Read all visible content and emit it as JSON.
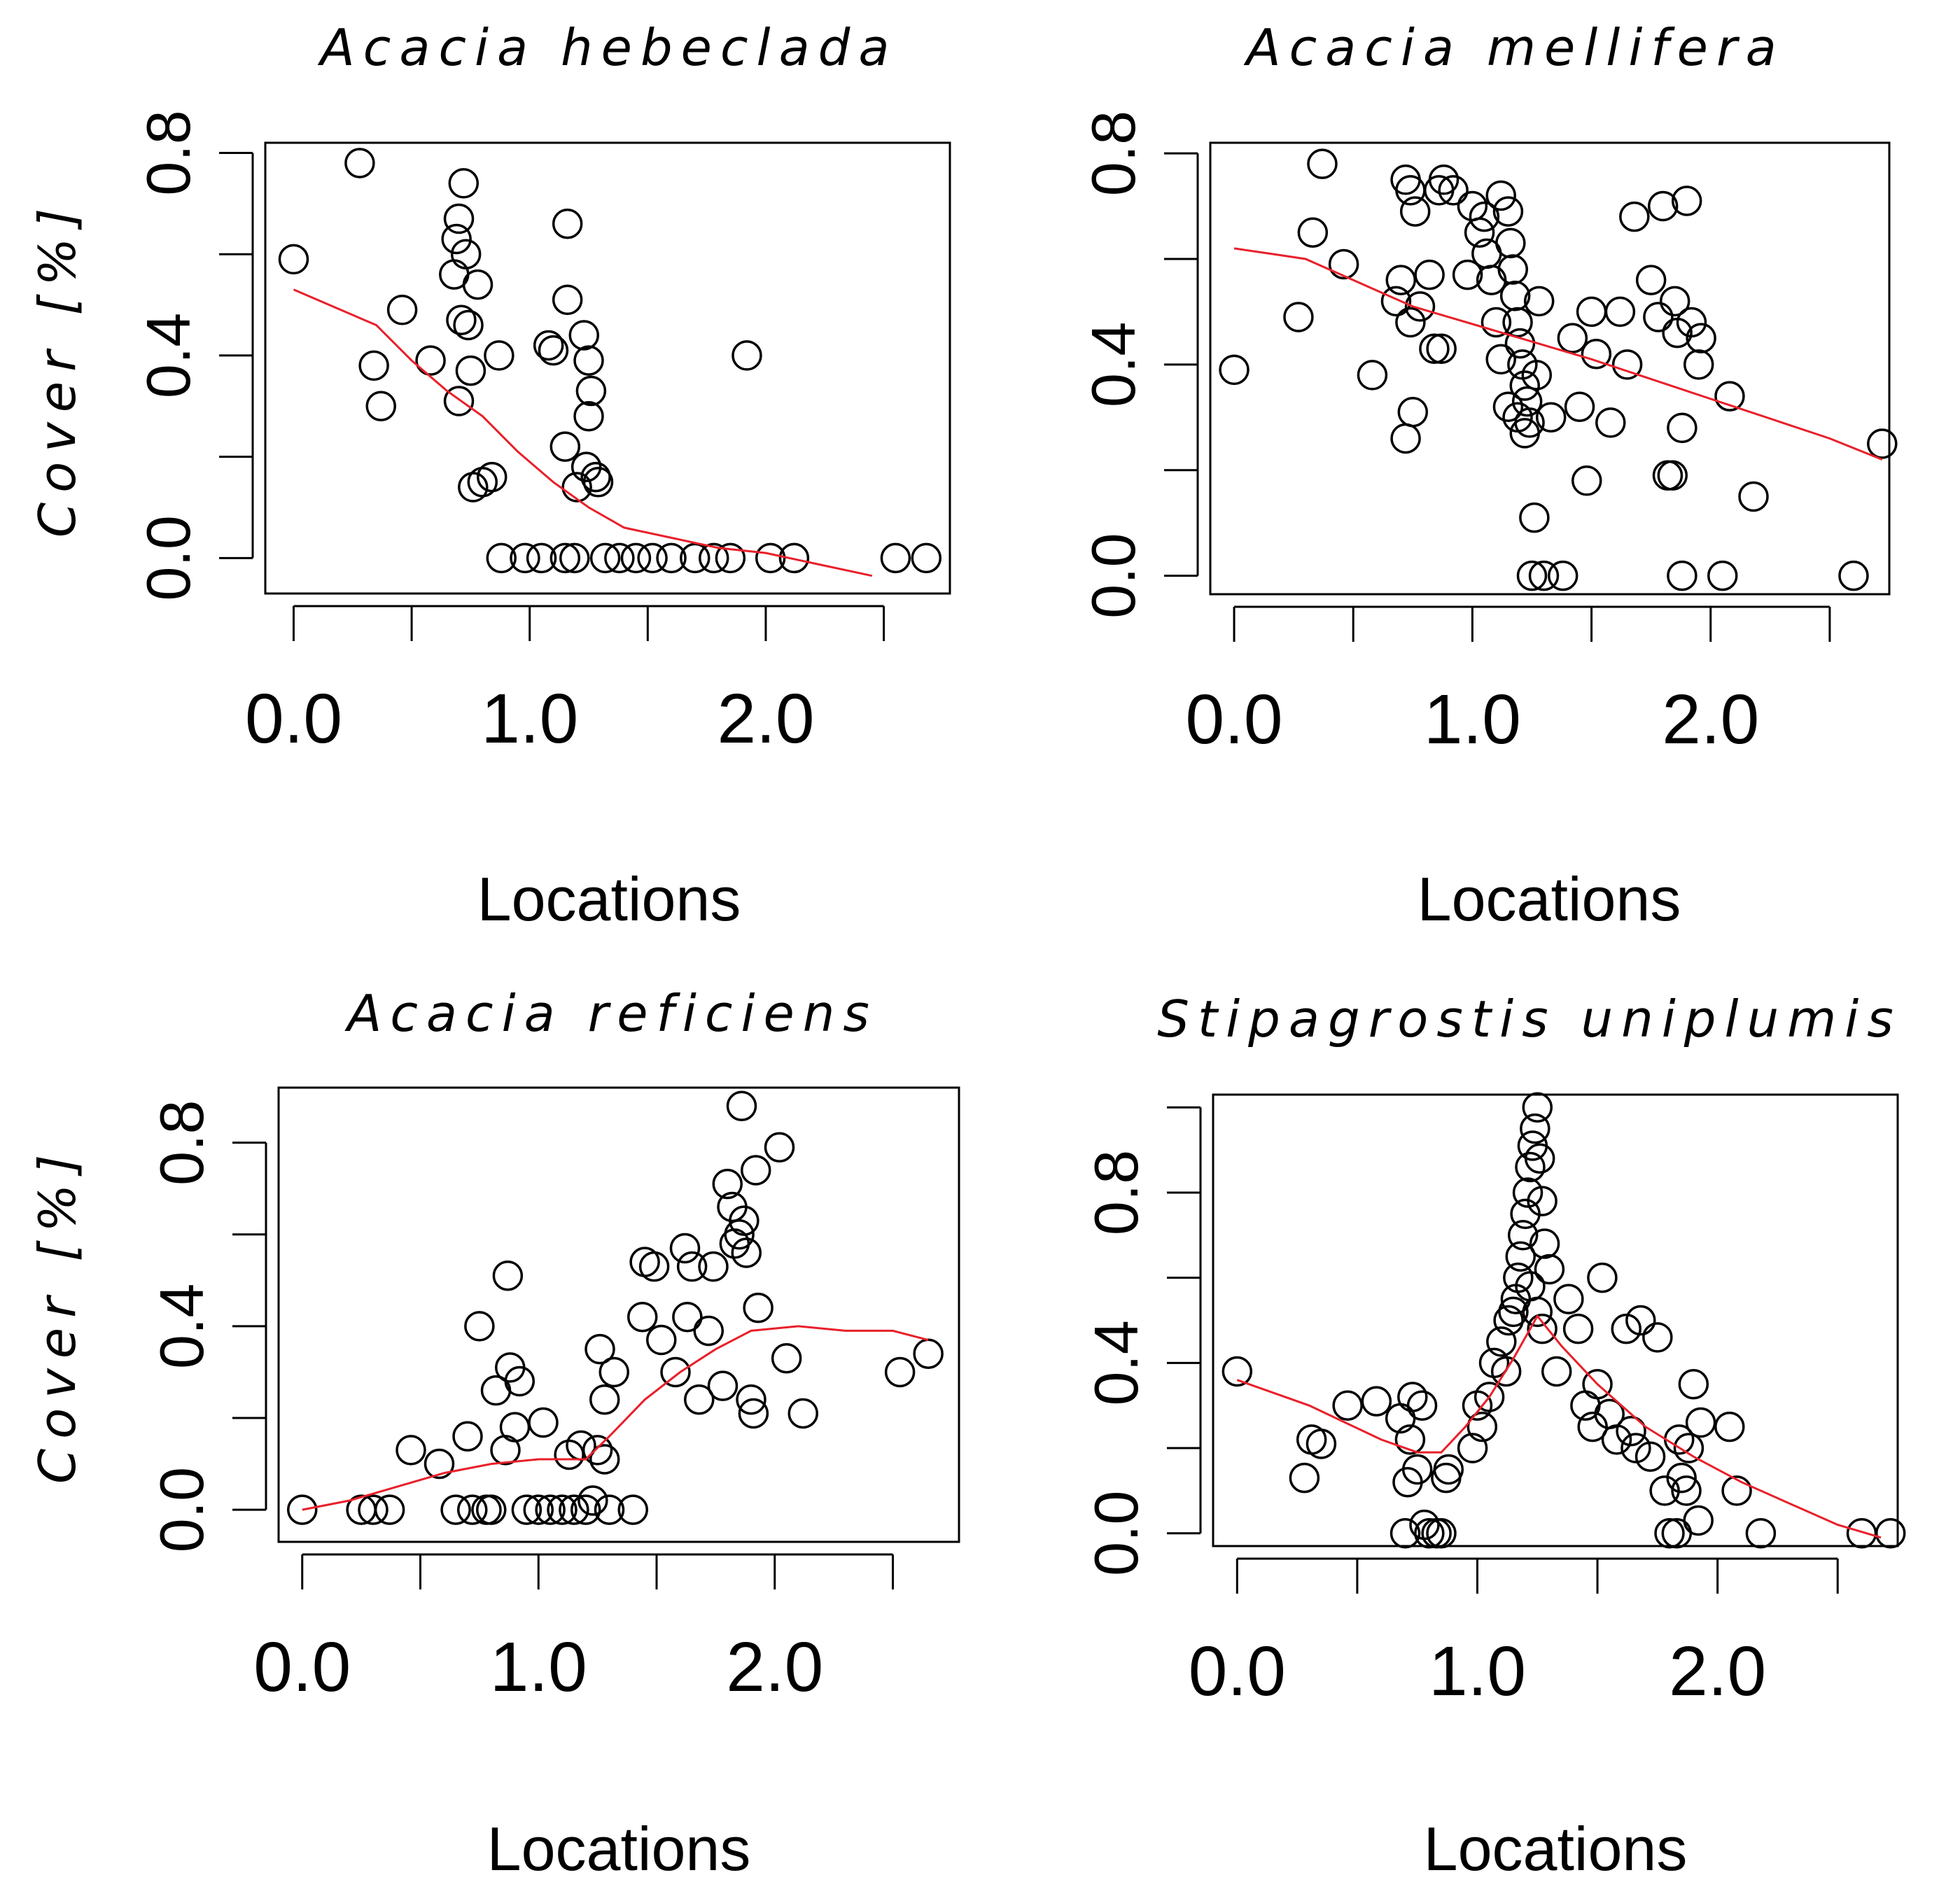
{
  "chart_data": [
    {
      "type": "scatter",
      "title": "Acacia hebeclada",
      "xlabel": "Locations",
      "ylabel": "Cover [%]",
      "xlim": [
        -0.12,
        2.78
      ],
      "ylim": [
        -0.07,
        0.82
      ],
      "xticks": [
        0,
        0.5,
        1,
        1.5,
        2,
        2.5
      ],
      "xtick_labels": [
        "0.0",
        "",
        "1.0",
        "",
        "2.0",
        ""
      ],
      "yticks": [
        0,
        0.2,
        0.4,
        0.6,
        0.8
      ],
      "ytick_labels": [
        "0.0",
        "",
        "0.4",
        "",
        "0.8"
      ],
      "points": [
        [
          0.0,
          0.59
        ],
        [
          0.28,
          0.78
        ],
        [
          0.34,
          0.38
        ],
        [
          0.37,
          0.3
        ],
        [
          0.46,
          0.49
        ],
        [
          0.58,
          0.39
        ],
        [
          0.68,
          0.56
        ],
        [
          0.69,
          0.63
        ],
        [
          0.7,
          0.67
        ],
        [
          0.72,
          0.74
        ],
        [
          0.73,
          0.6
        ],
        [
          0.71,
          0.47
        ],
        [
          0.74,
          0.46
        ],
        [
          0.75,
          0.37
        ],
        [
          0.7,
          0.31
        ],
        [
          0.78,
          0.54
        ],
        [
          0.76,
          0.14
        ],
        [
          0.8,
          0.15
        ],
        [
          0.84,
          0.16
        ],
        [
          0.87,
          0.4
        ],
        [
          0.88,
          0.0
        ],
        [
          0.98,
          0.0
        ],
        [
          1.05,
          0.0
        ],
        [
          1.08,
          0.42
        ],
        [
          1.1,
          0.41
        ],
        [
          1.15,
          0.0
        ],
        [
          1.16,
          0.66
        ],
        [
          1.16,
          0.51
        ],
        [
          1.15,
          0.22
        ],
        [
          1.19,
          0.0
        ],
        [
          1.23,
          0.44
        ],
        [
          1.25,
          0.39
        ],
        [
          1.26,
          0.33
        ],
        [
          1.25,
          0.28
        ],
        [
          1.24,
          0.18
        ],
        [
          1.28,
          0.16
        ],
        [
          1.2,
          0.14
        ],
        [
          1.29,
          0.15
        ],
        [
          1.32,
          0.0
        ],
        [
          1.38,
          0.0
        ],
        [
          1.45,
          0.0
        ],
        [
          1.52,
          0.0
        ],
        [
          1.6,
          0.0
        ],
        [
          1.7,
          0.0
        ],
        [
          1.78,
          0.0
        ],
        [
          1.85,
          0.0
        ],
        [
          1.92,
          0.4
        ],
        [
          2.02,
          0.0
        ],
        [
          2.12,
          0.0
        ],
        [
          2.55,
          0.0
        ],
        [
          2.68,
          0.0
        ]
      ],
      "series": [
        {
          "name": "smoother",
          "color": "#e8202a",
          "x": [
            0.0,
            0.2,
            0.35,
            0.5,
            0.65,
            0.8,
            0.95,
            1.1,
            1.25,
            1.4,
            1.6,
            1.8,
            2.0,
            2.2,
            2.45
          ],
          "y": [
            0.53,
            0.49,
            0.46,
            0.39,
            0.33,
            0.28,
            0.21,
            0.15,
            0.1,
            0.06,
            0.04,
            0.02,
            0.01,
            -0.01,
            -0.035
          ]
        }
      ]
    },
    {
      "type": "scatter",
      "title": "Acacia mellifera",
      "xlabel": "Locations",
      "ylabel": "",
      "xlim": [
        -0.1,
        2.75
      ],
      "ylim": [
        -0.035,
        0.82
      ],
      "xticks": [
        0,
        0.5,
        1,
        1.5,
        2,
        2.5
      ],
      "xtick_labels": [
        "0.0",
        "",
        "1.0",
        "",
        "2.0",
        ""
      ],
      "yticks": [
        0,
        0.2,
        0.4,
        0.6,
        0.8
      ],
      "ytick_labels": [
        "0.0",
        "",
        "0.4",
        "",
        "0.8"
      ],
      "points": [
        [
          0.0,
          0.39
        ],
        [
          0.27,
          0.49
        ],
        [
          0.33,
          0.65
        ],
        [
          0.37,
          0.78
        ],
        [
          0.46,
          0.59
        ],
        [
          0.58,
          0.38
        ],
        [
          0.68,
          0.52
        ],
        [
          0.7,
          0.56
        ],
        [
          0.72,
          0.75
        ],
        [
          0.74,
          0.73
        ],
        [
          0.76,
          0.69
        ],
        [
          0.72,
          0.26
        ],
        [
          0.75,
          0.31
        ],
        [
          0.74,
          0.48
        ],
        [
          0.78,
          0.51
        ],
        [
          0.82,
          0.57
        ],
        [
          0.84,
          0.43
        ],
        [
          0.87,
          0.43
        ],
        [
          0.86,
          0.73
        ],
        [
          0.88,
          0.75
        ],
        [
          0.92,
          0.73
        ],
        [
          0.98,
          0.57
        ],
        [
          1.0,
          0.7
        ],
        [
          1.03,
          0.65
        ],
        [
          1.05,
          0.68
        ],
        [
          1.06,
          0.61
        ],
        [
          1.08,
          0.56
        ],
        [
          1.1,
          0.48
        ],
        [
          1.12,
          0.41
        ],
        [
          1.12,
          0.72
        ],
        [
          1.15,
          0.69
        ],
        [
          1.16,
          0.63
        ],
        [
          1.17,
          0.58
        ],
        [
          1.18,
          0.53
        ],
        [
          1.19,
          0.48
        ],
        [
          1.2,
          0.44
        ],
        [
          1.21,
          0.4
        ],
        [
          1.22,
          0.36
        ],
        [
          1.23,
          0.33
        ],
        [
          1.24,
          0.29
        ],
        [
          1.25,
          0.0
        ],
        [
          1.26,
          0.11
        ],
        [
          1.27,
          0.38
        ],
        [
          1.28,
          0.52
        ],
        [
          1.15,
          0.32
        ],
        [
          1.19,
          0.3
        ],
        [
          1.22,
          0.27
        ],
        [
          1.3,
          0.0
        ],
        [
          1.33,
          0.3
        ],
        [
          1.38,
          0.0
        ],
        [
          1.42,
          0.45
        ],
        [
          1.45,
          0.32
        ],
        [
          1.48,
          0.18
        ],
        [
          1.5,
          0.5
        ],
        [
          1.52,
          0.42
        ],
        [
          1.58,
          0.29
        ],
        [
          1.62,
          0.5
        ],
        [
          1.65,
          0.4
        ],
        [
          1.68,
          0.68
        ],
        [
          1.75,
          0.56
        ],
        [
          1.78,
          0.49
        ],
        [
          1.8,
          0.7
        ],
        [
          1.82,
          0.19
        ],
        [
          1.84,
          0.19
        ],
        [
          1.85,
          0.52
        ],
        [
          1.86,
          0.46
        ],
        [
          1.88,
          0.28
        ],
        [
          1.9,
          0.71
        ],
        [
          1.88,
          0.0
        ],
        [
          1.92,
          0.48
        ],
        [
          1.95,
          0.4
        ],
        [
          1.96,
          0.45
        ],
        [
          2.08,
          0.34
        ],
        [
          2.05,
          0.0
        ],
        [
          2.18,
          0.15
        ],
        [
          2.6,
          0.0
        ],
        [
          2.72,
          0.25
        ]
      ],
      "series": [
        {
          "name": "smoother",
          "color": "#e8202a",
          "x": [
            0.0,
            0.15,
            0.3,
            0.45,
            0.6,
            0.75,
            0.9,
            1.05,
            1.2,
            1.35,
            1.5,
            1.7,
            1.9,
            2.1,
            2.3,
            2.5,
            2.72
          ],
          "y": [
            0.62,
            0.61,
            0.6,
            0.57,
            0.54,
            0.51,
            0.49,
            0.47,
            0.45,
            0.43,
            0.41,
            0.38,
            0.35,
            0.32,
            0.29,
            0.26,
            0.22
          ]
        }
      ]
    },
    {
      "type": "scatter",
      "title": "Acacia reficiens",
      "xlabel": "Locations",
      "ylabel": "Cover [%]",
      "xlim": [
        -0.1,
        2.78
      ],
      "ylim": [
        -0.07,
        0.92
      ],
      "xticks": [
        0,
        0.5,
        1,
        1.5,
        2,
        2.5
      ],
      "xtick_labels": [
        "0.0",
        "",
        "1.0",
        "",
        "2.0",
        ""
      ],
      "yticks": [
        0,
        0.2,
        0.4,
        0.6,
        0.8
      ],
      "ytick_labels": [
        "0.0",
        "",
        "0.4",
        "",
        "0.8"
      ],
      "points": [
        [
          0.0,
          0.0
        ],
        [
          0.25,
          0.0
        ],
        [
          0.3,
          0.0
        ],
        [
          0.37,
          0.0
        ],
        [
          0.46,
          0.13
        ],
        [
          0.58,
          0.1
        ],
        [
          0.65,
          0.0
        ],
        [
          0.7,
          0.16
        ],
        [
          0.72,
          0.0
        ],
        [
          0.75,
          0.4
        ],
        [
          0.78,
          0.0
        ],
        [
          0.8,
          0.0
        ],
        [
          0.82,
          0.26
        ],
        [
          0.86,
          0.13
        ],
        [
          0.87,
          0.51
        ],
        [
          0.88,
          0.31
        ],
        [
          0.9,
          0.18
        ],
        [
          0.92,
          0.28
        ],
        [
          0.95,
          0.0
        ],
        [
          1.0,
          0.0
        ],
        [
          1.02,
          0.19
        ],
        [
          1.05,
          0.0
        ],
        [
          1.1,
          0.0
        ],
        [
          1.13,
          0.12
        ],
        [
          1.15,
          0.0
        ],
        [
          1.18,
          0.14
        ],
        [
          1.2,
          0.0
        ],
        [
          1.23,
          0.02
        ],
        [
          1.25,
          0.13
        ],
        [
          1.28,
          0.11
        ],
        [
          1.26,
          0.35
        ],
        [
          1.28,
          0.24
        ],
        [
          1.3,
          0.0
        ],
        [
          1.32,
          0.3
        ],
        [
          1.4,
          0.0
        ],
        [
          1.44,
          0.42
        ],
        [
          1.45,
          0.54
        ],
        [
          1.49,
          0.53
        ],
        [
          1.52,
          0.37
        ],
        [
          1.58,
          0.3
        ],
        [
          1.62,
          0.57
        ],
        [
          1.63,
          0.42
        ],
        [
          1.65,
          0.53
        ],
        [
          1.68,
          0.24
        ],
        [
          1.72,
          0.39
        ],
        [
          1.74,
          0.53
        ],
        [
          1.78,
          0.27
        ],
        [
          1.8,
          0.71
        ],
        [
          1.82,
          0.66
        ],
        [
          1.83,
          0.58
        ],
        [
          1.85,
          0.6
        ],
        [
          1.86,
          0.88
        ],
        [
          1.87,
          0.63
        ],
        [
          1.88,
          0.56
        ],
        [
          1.9,
          0.24
        ],
        [
          1.91,
          0.21
        ],
        [
          1.92,
          0.74
        ],
        [
          1.93,
          0.44
        ],
        [
          2.02,
          0.79
        ],
        [
          2.05,
          0.33
        ],
        [
          2.12,
          0.21
        ],
        [
          2.53,
          0.3
        ],
        [
          2.65,
          0.34
        ]
      ],
      "series": [
        {
          "name": "smoother",
          "color": "#e8202a",
          "x": [
            0.0,
            0.2,
            0.4,
            0.6,
            0.8,
            1.0,
            1.2,
            1.3,
            1.45,
            1.6,
            1.75,
            1.9,
            2.1,
            2.3,
            2.5,
            2.65
          ],
          "y": [
            0.0,
            0.02,
            0.05,
            0.08,
            0.1,
            0.11,
            0.11,
            0.16,
            0.24,
            0.3,
            0.35,
            0.39,
            0.4,
            0.39,
            0.39,
            0.37
          ]
        }
      ]
    },
    {
      "type": "scatter",
      "title": "Stipagrostis uniplumis",
      "xlabel": "Locations",
      "ylabel": "",
      "xlim": [
        -0.1,
        2.75
      ],
      "ylim": [
        -0.03,
        1.03
      ],
      "xticks": [
        0,
        0.5,
        1,
        1.5,
        2,
        2.5
      ],
      "xtick_labels": [
        "0.0",
        "",
        "1.0",
        "",
        "2.0",
        ""
      ],
      "yticks": [
        0,
        0.2,
        0.4,
        0.6,
        0.8,
        1.0
      ],
      "ytick_labels": [
        "0.0",
        "",
        "0.4",
        "",
        "0.8",
        ""
      ],
      "points": [
        [
          0.0,
          0.38
        ],
        [
          0.28,
          0.13
        ],
        [
          0.31,
          0.22
        ],
        [
          0.35,
          0.21
        ],
        [
          0.46,
          0.3
        ],
        [
          0.58,
          0.31
        ],
        [
          0.68,
          0.27
        ],
        [
          0.7,
          0.0
        ],
        [
          0.71,
          0.12
        ],
        [
          0.72,
          0.22
        ],
        [
          0.73,
          0.32
        ],
        [
          0.75,
          0.15
        ],
        [
          0.77,
          0.3
        ],
        [
          0.78,
          0.02
        ],
        [
          0.8,
          0.0
        ],
        [
          0.83,
          0.0
        ],
        [
          0.85,
          0.0
        ],
        [
          0.87,
          0.13
        ],
        [
          0.88,
          0.15
        ],
        [
          0.98,
          0.2
        ],
        [
          1.0,
          0.3
        ],
        [
          1.02,
          0.25
        ],
        [
          1.05,
          0.32
        ],
        [
          1.07,
          0.4
        ],
        [
          1.1,
          0.45
        ],
        [
          1.12,
          0.38
        ],
        [
          1.13,
          0.5
        ],
        [
          1.15,
          0.52
        ],
        [
          1.16,
          0.55
        ],
        [
          1.17,
          0.6
        ],
        [
          1.18,
          0.65
        ],
        [
          1.19,
          0.7
        ],
        [
          1.2,
          0.75
        ],
        [
          1.21,
          0.8
        ],
        [
          1.22,
          0.86
        ],
        [
          1.23,
          0.91
        ],
        [
          1.24,
          0.95
        ],
        [
          1.25,
          1.0
        ],
        [
          1.26,
          0.88
        ],
        [
          1.27,
          0.78
        ],
        [
          1.28,
          0.68
        ],
        [
          1.22,
          0.58
        ],
        [
          1.25,
          0.52
        ],
        [
          1.27,
          0.48
        ],
        [
          1.3,
          0.62
        ],
        [
          1.33,
          0.38
        ],
        [
          1.38,
          0.55
        ],
        [
          1.42,
          0.48
        ],
        [
          1.45,
          0.3
        ],
        [
          1.48,
          0.25
        ],
        [
          1.5,
          0.35
        ],
        [
          1.52,
          0.6
        ],
        [
          1.55,
          0.28
        ],
        [
          1.58,
          0.22
        ],
        [
          1.62,
          0.48
        ],
        [
          1.64,
          0.24
        ],
        [
          1.66,
          0.2
        ],
        [
          1.68,
          0.5
        ],
        [
          1.72,
          0.18
        ],
        [
          1.75,
          0.46
        ],
        [
          1.78,
          0.1
        ],
        [
          1.8,
          0.0
        ],
        [
          1.83,
          0.0
        ],
        [
          1.84,
          0.22
        ],
        [
          1.85,
          0.13
        ],
        [
          1.87,
          0.1
        ],
        [
          1.88,
          0.2
        ],
        [
          1.9,
          0.35
        ],
        [
          1.92,
          0.03
        ],
        [
          1.93,
          0.26
        ],
        [
          2.05,
          0.25
        ],
        [
          2.08,
          0.1
        ],
        [
          2.18,
          0.0
        ],
        [
          2.6,
          0.0
        ],
        [
          2.72,
          0.0
        ]
      ],
      "series": [
        {
          "name": "smoother",
          "color": "#e8202a",
          "x": [
            0.0,
            0.15,
            0.3,
            0.45,
            0.6,
            0.75,
            0.85,
            0.95,
            1.05,
            1.15,
            1.25,
            1.35,
            1.5,
            1.7,
            1.9,
            2.1,
            2.3,
            2.5,
            2.68
          ],
          "y": [
            0.36,
            0.33,
            0.3,
            0.26,
            0.22,
            0.19,
            0.19,
            0.25,
            0.32,
            0.41,
            0.51,
            0.44,
            0.35,
            0.25,
            0.18,
            0.12,
            0.07,
            0.02,
            -0.01
          ]
        }
      ]
    }
  ]
}
